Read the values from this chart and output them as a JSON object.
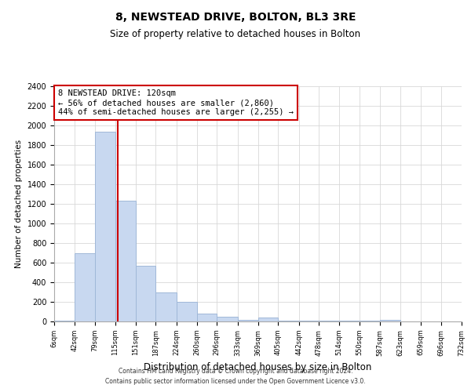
{
  "title": "8, NEWSTEAD DRIVE, BOLTON, BL3 3RE",
  "subtitle": "Size of property relative to detached houses in Bolton",
  "xlabel": "Distribution of detached houses by size in Bolton",
  "ylabel": "Number of detached properties",
  "bar_color": "#c8d8f0",
  "bar_edge_color": "#a0b8d8",
  "property_line_x": 120,
  "property_line_color": "#cc0000",
  "annotation_line1": "8 NEWSTEAD DRIVE: 120sqm",
  "annotation_line2": "← 56% of detached houses are smaller (2,860)",
  "annotation_line3": "44% of semi-detached houses are larger (2,255) →",
  "annotation_box_color": "white",
  "annotation_box_edge_color": "#cc0000",
  "bin_edges": [
    6,
    42,
    79,
    115,
    151,
    187,
    224,
    260,
    296,
    333,
    369,
    405,
    442,
    478,
    514,
    550,
    587,
    623,
    659,
    696,
    732
  ],
  "bar_heights": [
    10,
    700,
    1940,
    1230,
    570,
    300,
    200,
    80,
    45,
    15,
    40,
    8,
    5,
    10,
    5,
    5,
    20,
    2,
    2,
    2
  ],
  "ylim": [
    0,
    2400
  ],
  "yticks": [
    0,
    200,
    400,
    600,
    800,
    1000,
    1200,
    1400,
    1600,
    1800,
    2000,
    2200,
    2400
  ],
  "footnote1": "Contains HM Land Registry data © Crown copyright and database right 2024.",
  "footnote2": "Contains public sector information licensed under the Open Government Licence v3.0.",
  "background_color": "#ffffff",
  "grid_color": "#d8d8d8"
}
